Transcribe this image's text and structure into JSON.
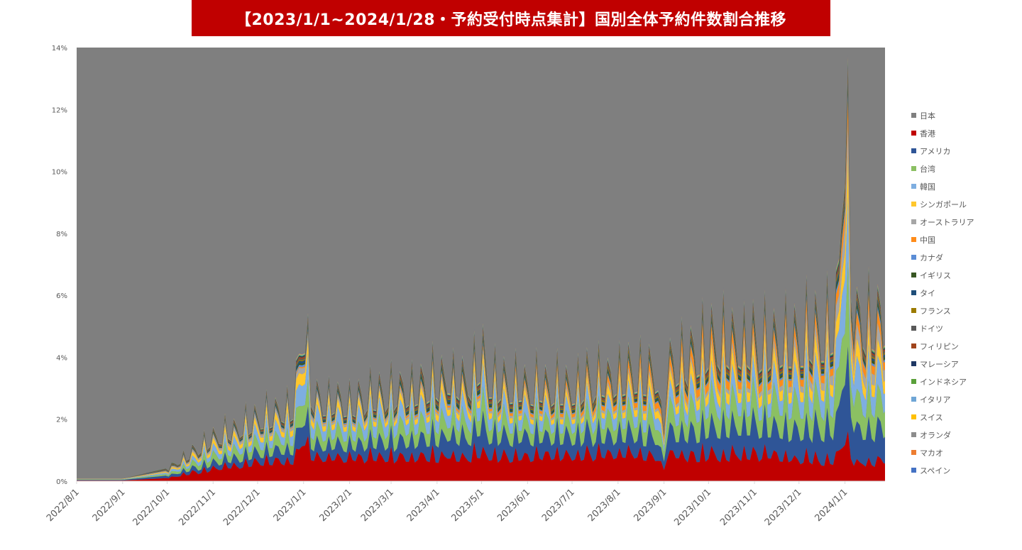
{
  "chart_data": {
    "type": "area",
    "stacked": true,
    "title": "【2023/1/1~2024/1/28・予約受付時点集計】国別全体予約件数割合推移",
    "xlabel": "",
    "ylabel": "",
    "ylim": [
      0,
      14
    ],
    "y_ticks": [
      "0%",
      "2%",
      "4%",
      "6%",
      "8%",
      "10%",
      "12%",
      "14%"
    ],
    "x_tick_labels": [
      "2022/8/1",
      "2022/9/1",
      "2022/10/1",
      "2022/11/1",
      "2022/12/1",
      "2023/1/1",
      "2023/2/1",
      "2023/3/1",
      "2023/4/1",
      "2023/5/1",
      "2023/6/1",
      "2023/7/1",
      "2023/8/1",
      "2023/9/1",
      "2023/10/1",
      "2023/11/1",
      "2023/12/1",
      "2024/1/1"
    ],
    "x_range": [
      "2022/8/1",
      "2024/1/28"
    ],
    "legend_position": "right",
    "background_series": {
      "name": "日本",
      "color": "#7f7f7f"
    },
    "series": [
      {
        "name": "香港",
        "color": "#c00000",
        "values": [
          0.02,
          0.02,
          0.1,
          0.45,
          0.65,
          0.75,
          0.85,
          0.8,
          0.9,
          0.85,
          0.9,
          0.9,
          0.95,
          0.95,
          0.9,
          0.95,
          0.8,
          0.7
        ]
      },
      {
        "name": "アメリカ",
        "color": "#2f5597",
        "values": [
          0.02,
          0.02,
          0.08,
          0.2,
          0.35,
          0.45,
          0.45,
          0.55,
          0.7,
          0.75,
          0.7,
          0.7,
          0.65,
          0.7,
          1.0,
          1.0,
          1.0,
          1.2
        ]
      },
      {
        "name": "台湾",
        "color": "#8bc063",
        "values": [
          0.01,
          0.01,
          0.05,
          0.25,
          0.35,
          0.45,
          0.45,
          0.55,
          0.55,
          0.6,
          0.5,
          0.5,
          0.6,
          0.7,
          0.85,
          0.85,
          0.95,
          1.0
        ]
      },
      {
        "name": "韓国",
        "color": "#7eaee0",
        "values": [
          0.01,
          0.01,
          0.05,
          0.2,
          0.3,
          0.45,
          0.45,
          0.5,
          0.5,
          0.5,
          0.45,
          0.4,
          0.5,
          0.5,
          0.6,
          0.6,
          0.7,
          0.85
        ]
      },
      {
        "name": "シンガポール",
        "color": "#ffc72c",
        "values": [
          0.01,
          0.01,
          0.03,
          0.15,
          0.2,
          0.25,
          0.2,
          0.2,
          0.25,
          0.25,
          0.2,
          0.2,
          0.25,
          0.3,
          0.45,
          0.4,
          0.45,
          0.5
        ]
      },
      {
        "name": "オーストラリア",
        "color": "#a6a6a6",
        "values": [
          0.01,
          0.01,
          0.02,
          0.08,
          0.1,
          0.12,
          0.1,
          0.1,
          0.1,
          0.1,
          0.1,
          0.1,
          0.1,
          0.12,
          0.15,
          0.18,
          0.25,
          0.45
        ]
      },
      {
        "name": "中国",
        "color": "#ff8c1a",
        "values": [
          0.0,
          0.0,
          0.01,
          0.02,
          0.02,
          0.03,
          0.03,
          0.05,
          0.08,
          0.1,
          0.12,
          0.14,
          0.2,
          0.25,
          0.35,
          0.3,
          0.3,
          0.35
        ]
      },
      {
        "name": "カナダ",
        "color": "#5b8dd6",
        "values": [
          0.0,
          0.0,
          0.01,
          0.03,
          0.04,
          0.05,
          0.05,
          0.05,
          0.06,
          0.06,
          0.05,
          0.05,
          0.05,
          0.06,
          0.08,
          0.08,
          0.08,
          0.1
        ]
      },
      {
        "name": "イギリス",
        "color": "#375623",
        "values": [
          0.0,
          0.0,
          0.01,
          0.03,
          0.04,
          0.05,
          0.06,
          0.08,
          0.1,
          0.1,
          0.08,
          0.07,
          0.07,
          0.08,
          0.12,
          0.12,
          0.1,
          0.12
        ]
      },
      {
        "name": "タイ",
        "color": "#1f4e79",
        "values": [
          0.0,
          0.0,
          0.01,
          0.02,
          0.04,
          0.06,
          0.05,
          0.05,
          0.08,
          0.07,
          0.05,
          0.05,
          0.06,
          0.06,
          0.08,
          0.08,
          0.08,
          0.1
        ]
      },
      {
        "name": "フランス",
        "color": "#9c7b00",
        "values": [
          0.0,
          0.0,
          0.01,
          0.02,
          0.02,
          0.03,
          0.03,
          0.04,
          0.05,
          0.05,
          0.05,
          0.06,
          0.08,
          0.07,
          0.08,
          0.07,
          0.06,
          0.07
        ]
      },
      {
        "name": "ドイツ",
        "color": "#595959",
        "values": [
          0.0,
          0.0,
          0.01,
          0.02,
          0.02,
          0.03,
          0.03,
          0.04,
          0.05,
          0.05,
          0.05,
          0.05,
          0.05,
          0.05,
          0.07,
          0.07,
          0.06,
          0.07
        ]
      },
      {
        "name": "フィリピン",
        "color": "#a0441c",
        "values": [
          0.0,
          0.0,
          0.01,
          0.02,
          0.03,
          0.04,
          0.04,
          0.05,
          0.06,
          0.06,
          0.05,
          0.05,
          0.05,
          0.06,
          0.08,
          0.08,
          0.07,
          0.08
        ]
      },
      {
        "name": "マレーシア",
        "color": "#1f3864",
        "values": [
          0.0,
          0.0,
          0.01,
          0.02,
          0.02,
          0.03,
          0.03,
          0.03,
          0.04,
          0.04,
          0.03,
          0.03,
          0.04,
          0.04,
          0.05,
          0.05,
          0.05,
          0.06
        ]
      },
      {
        "name": "インドネシア",
        "color": "#5aa03a",
        "values": [
          0.0,
          0.0,
          0.01,
          0.01,
          0.02,
          0.02,
          0.02,
          0.02,
          0.03,
          0.03,
          0.02,
          0.02,
          0.03,
          0.03,
          0.04,
          0.04,
          0.04,
          0.05
        ]
      },
      {
        "name": "イタリア",
        "color": "#6fa6d6",
        "values": [
          0.0,
          0.0,
          0.0,
          0.01,
          0.01,
          0.02,
          0.02,
          0.02,
          0.03,
          0.03,
          0.03,
          0.03,
          0.03,
          0.03,
          0.04,
          0.03,
          0.03,
          0.03
        ]
      },
      {
        "name": "スイス",
        "color": "#ffc000",
        "values": [
          0.0,
          0.0,
          0.0,
          0.01,
          0.01,
          0.01,
          0.01,
          0.01,
          0.02,
          0.02,
          0.02,
          0.02,
          0.02,
          0.02,
          0.02,
          0.02,
          0.02,
          0.02
        ]
      },
      {
        "name": "オランダ",
        "color": "#8c8c8c",
        "values": [
          0.0,
          0.0,
          0.0,
          0.01,
          0.01,
          0.01,
          0.01,
          0.01,
          0.02,
          0.02,
          0.02,
          0.02,
          0.02,
          0.02,
          0.02,
          0.02,
          0.02,
          0.02
        ]
      },
      {
        "name": "マカオ",
        "color": "#ed7d31",
        "values": [
          0.0,
          0.0,
          0.0,
          0.01,
          0.01,
          0.01,
          0.01,
          0.01,
          0.01,
          0.01,
          0.01,
          0.01,
          0.01,
          0.01,
          0.02,
          0.02,
          0.02,
          0.02
        ]
      },
      {
        "name": "スペイン",
        "color": "#4472c4",
        "values": [
          0.0,
          0.0,
          0.0,
          0.01,
          0.01,
          0.01,
          0.01,
          0.01,
          0.02,
          0.02,
          0.02,
          0.02,
          0.02,
          0.02,
          0.02,
          0.02,
          0.02,
          0.02
        ]
      }
    ]
  }
}
